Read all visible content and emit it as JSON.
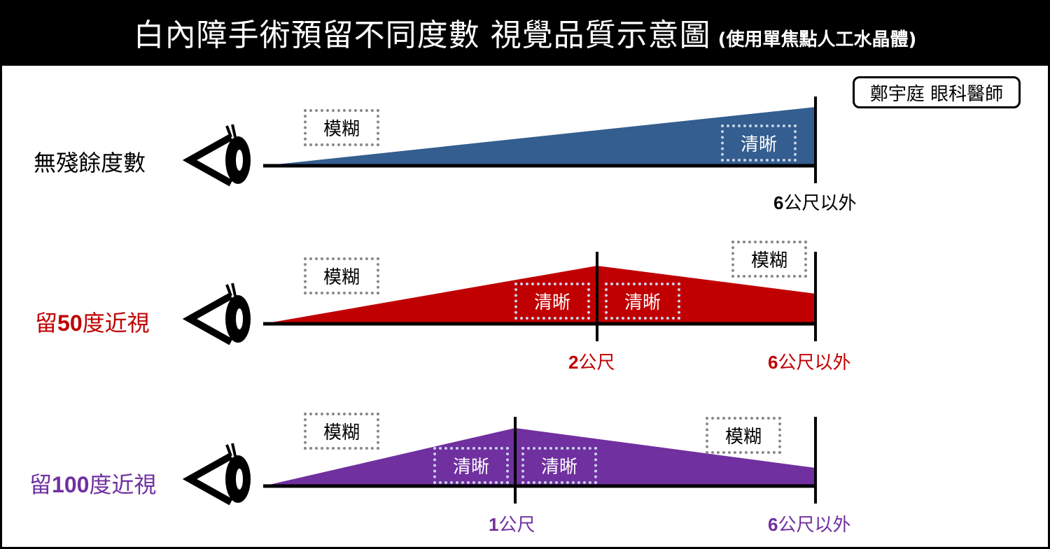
{
  "header": {
    "title": "白內障手術預留不同度數 視覺品質示意圖",
    "subtitle": "(使用單焦點人工水晶體)"
  },
  "author": "鄭宇庭 眼科醫師",
  "colors": {
    "row1": "#345e8f",
    "row2": "#c00000",
    "row3": "#7030a0",
    "clear_box_border": "#c8d3ea",
    "blur_box_border": "#888888"
  },
  "rows": [
    {
      "label": "無殘餘度數",
      "label_prefix": "",
      "label_number": "",
      "label_suffix": "",
      "blur1": "模糊",
      "clear1": "清晰",
      "far_number": "6",
      "far_text": "公尺以外"
    },
    {
      "label_prefix": "留",
      "label_number": "50",
      "label_suffix": "度近視",
      "blur1": "模糊",
      "blur2": "模糊",
      "clear1": "清晰",
      "clear2": "清晰",
      "mid_number": "2",
      "mid_text": "公尺",
      "far_number": "6",
      "far_text": "公尺以外"
    },
    {
      "label_prefix": "留",
      "label_number": "100",
      "label_suffix": "度近視",
      "blur1": "模糊",
      "blur2": "模糊",
      "clear1": "清晰",
      "clear2": "清晰",
      "mid_number": "1",
      "mid_text": "公尺",
      "far_number": "6",
      "far_text": "公尺以外"
    }
  ],
  "icons": {
    "eye": "eye-icon"
  }
}
